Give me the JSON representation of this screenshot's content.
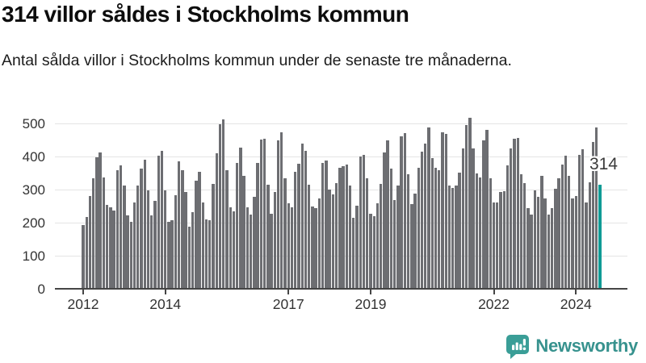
{
  "header": {
    "title": "314 villor såldes i Stockholms kommun",
    "subtitle": "Antal sålda villor i Stockholms kommun under de senaste tre månaderna."
  },
  "chart_data": {
    "type": "bar",
    "title": "314 villor såldes i Stockholms kommun",
    "xlabel": "",
    "ylabel": "",
    "ylim": [
      0,
      530
    ],
    "y_ticks": [
      0,
      100,
      200,
      300,
      400,
      500
    ],
    "grid": true,
    "x_tick_labels": [
      "2012",
      "2014",
      "2017",
      "2019",
      "2022",
      "2024"
    ],
    "x_tick_indices": [
      0,
      24,
      60,
      84,
      120,
      144
    ],
    "x_start_year": "2012",
    "bar_color": "#6d6e72",
    "highlight_color": "#0f9b95",
    "highlight_label": "314",
    "highlight_index": 151,
    "values": [
      193,
      216,
      281,
      333,
      398,
      413,
      337,
      253,
      247,
      237,
      358,
      373,
      312,
      222,
      203,
      262,
      313,
      363,
      391,
      297,
      222,
      267,
      403,
      417,
      297,
      203,
      207,
      282,
      385,
      359,
      292,
      187,
      232,
      328,
      353,
      260,
      210,
      208,
      318,
      410,
      497,
      512,
      359,
      246,
      234,
      380,
      427,
      341,
      247,
      225,
      278,
      381,
      452,
      454,
      315,
      228,
      292,
      450,
      473,
      334,
      258,
      247,
      354,
      377,
      438,
      416,
      314,
      249,
      245,
      273,
      381,
      387,
      300,
      286,
      319,
      365,
      371,
      375,
      312,
      215,
      251,
      399,
      406,
      334,
      227,
      220,
      258,
      316,
      411,
      448,
      363,
      269,
      311,
      460,
      471,
      346,
      257,
      288,
      367,
      414,
      438,
      489,
      395,
      365,
      359,
      473,
      468,
      312,
      306,
      311,
      351,
      424,
      495,
      517,
      424,
      349,
      337,
      450,
      481,
      333,
      261,
      261,
      292,
      296,
      373,
      424,
      453,
      457,
      346,
      319,
      243,
      224,
      298,
      278,
      341,
      273,
      224,
      243,
      302,
      333,
      375,
      403,
      341,
      273,
      281,
      406,
      422,
      260,
      322,
      444,
      487,
      314
    ]
  },
  "branding": {
    "name": "Newsworthy",
    "color": "#37928e",
    "icon_color": "#3a9e97",
    "icon": "bar-chart-speech-bubble-icon"
  }
}
